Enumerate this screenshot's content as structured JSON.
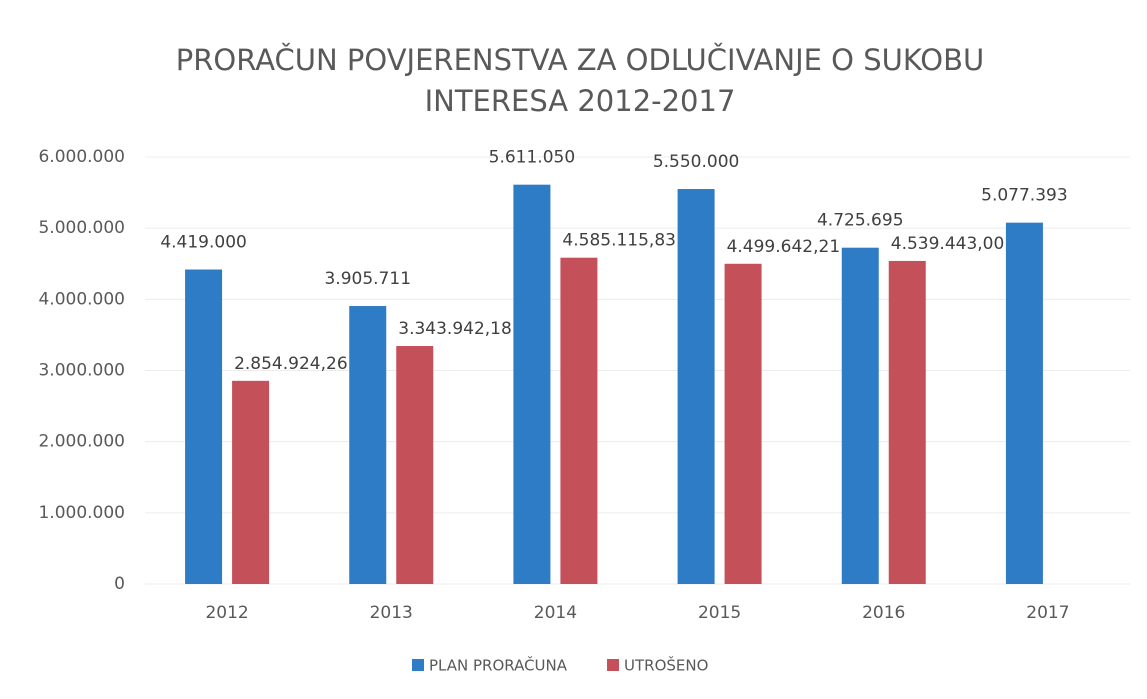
{
  "chart_data": {
    "type": "bar",
    "title": [
      "PRORAČUN POVJERENSTVA ZA ODLUČIVANJE O SUKOBU",
      "INTERESA 2012-2017"
    ],
    "categories": [
      "2012",
      "2013",
      "2014",
      "2015",
      "2016",
      "2017"
    ],
    "series": [
      {
        "name": "PLAN PRORAČUNA",
        "color": "#2e7cc6",
        "values": [
          4419000,
          3905711,
          5611050,
          5550000,
          4725695,
          5077393
        ],
        "value_labels": [
          "4.419.000",
          "3.905.711",
          "5.611.050",
          "5.550.000",
          "4.725.695",
          "5.077.393"
        ]
      },
      {
        "name": "UTROŠENO",
        "color": "#c4505a",
        "values": [
          2854924.26,
          3343942.18,
          4585115.83,
          4499642.21,
          4539443.0,
          null
        ],
        "value_labels": [
          "2.854.924,26",
          "3.343.942,18",
          "4.585.115,83",
          "4.499.642,21",
          "4.539.443,00",
          null
        ]
      }
    ],
    "ylim": [
      0,
      6000000
    ],
    "yticks": [
      0,
      {
        "value": 1000000,
        "label": "1.000.000"
      },
      {
        "value": 2000000,
        "label": "2.000.000"
      },
      {
        "value": 3000000,
        "label": "3.000.000"
      },
      {
        "value": 4000000,
        "label": "4.000.000"
      },
      {
        "value": 5000000,
        "label": "5.000.000"
      },
      {
        "value": 6000000,
        "label": "6.000.000"
      }
    ],
    "grid": true,
    "legend": "bottom"
  }
}
